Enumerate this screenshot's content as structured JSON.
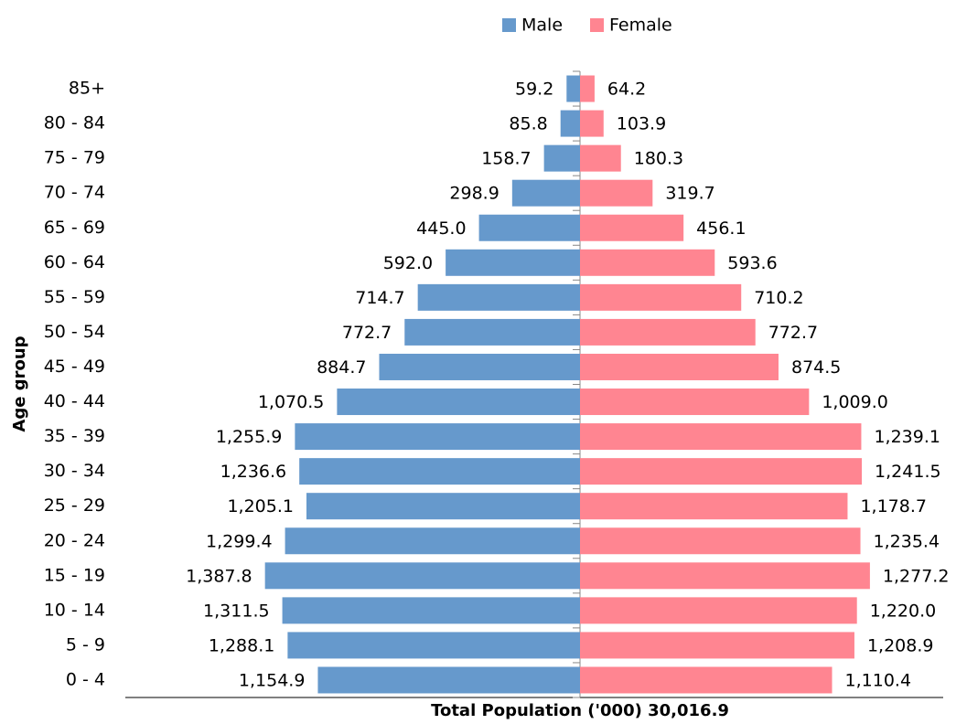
{
  "chart_data": {
    "type": "pyramid",
    "x_label": "Total Population ('000)  30,016.9",
    "y_label": "Age group",
    "categories": [
      "85+",
      "80 - 84",
      "75 - 79",
      "70 - 74",
      "65 - 69",
      "60 - 64",
      "55 - 59",
      "50 - 54",
      "45 - 49",
      "40 - 44",
      "35 - 39",
      "30 - 34",
      "25 - 29",
      "20 - 24",
      "15 - 19",
      "10 - 14",
      "5 - 9",
      "0 - 4"
    ],
    "series": [
      {
        "name": "Male",
        "color": "#6699cc",
        "values": [
          59.2,
          85.8,
          158.7,
          298.9,
          445.0,
          592.0,
          714.7,
          772.7,
          884.7,
          1070.5,
          1255.9,
          1236.6,
          1205.1,
          1299.4,
          1387.8,
          1311.5,
          1288.1,
          1154.9
        ],
        "value_labels": [
          "59.2",
          "85.8",
          "158.7",
          "298.9",
          "445.0",
          "592.0",
          "714.7",
          "772.7",
          "884.7",
          "1,070.5",
          "1,255.9",
          "1,236.6",
          "1,205.1",
          "1,299.4",
          "1,387.8",
          "1,311.5",
          "1,288.1",
          "1,154.9"
        ]
      },
      {
        "name": "Female",
        "color": "#ff8591",
        "values": [
          64.2,
          103.9,
          180.3,
          319.7,
          456.1,
          593.6,
          710.2,
          772.7,
          874.5,
          1009.0,
          1239.1,
          1241.5,
          1178.7,
          1235.4,
          1277.2,
          1220.0,
          1208.9,
          1110.4
        ],
        "value_labels": [
          "64.2",
          "103.9",
          "180.3",
          "319.7",
          "456.1",
          "593.6",
          "710.2",
          "772.7",
          "874.5",
          "1,009.0",
          "1,239.1",
          "1,241.5",
          "1,178.7",
          "1,235.4",
          "1,277.2",
          "1,220.0",
          "1,208.9",
          "1,110.4"
        ]
      }
    ],
    "xlim": [
      0,
      1600
    ],
    "legend": "top"
  }
}
